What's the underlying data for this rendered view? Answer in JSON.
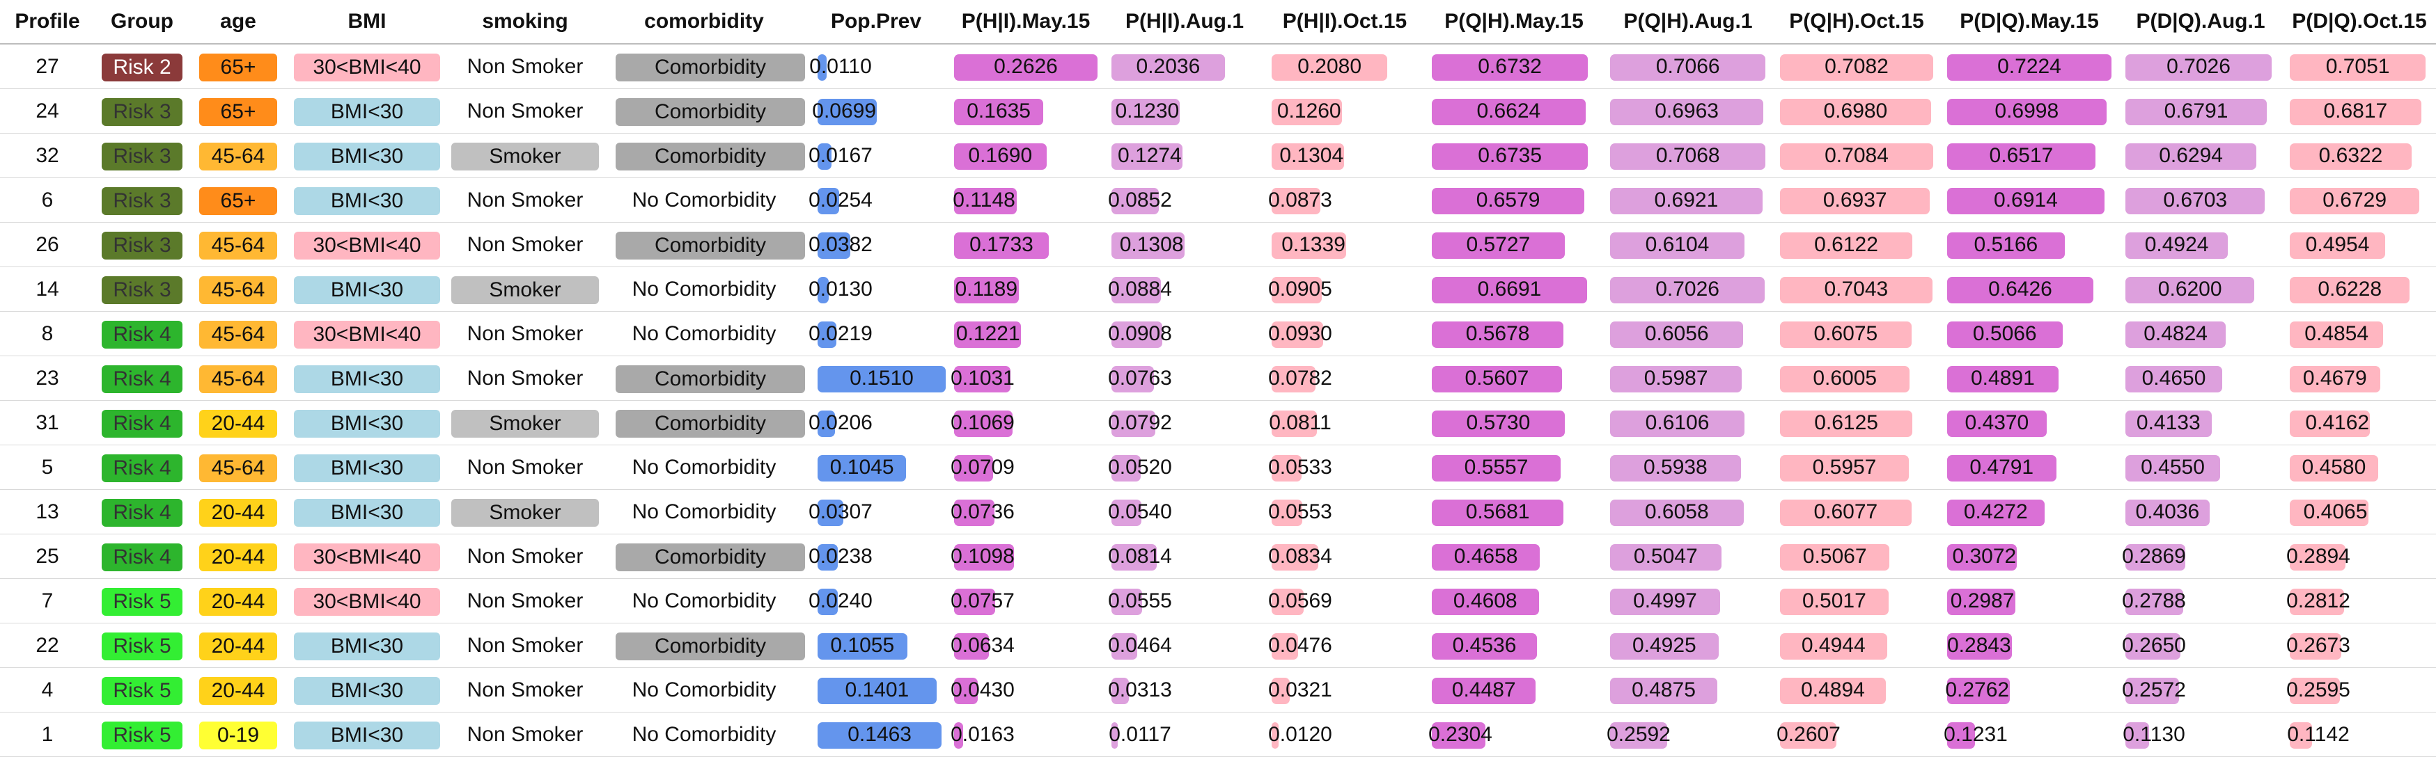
{
  "columns": [
    "Profile",
    "Group",
    "age",
    "BMI",
    "smoking",
    "comorbidity",
    "Pop.Prev",
    "P(H|I).May.15",
    "P(H|I).Aug.1",
    "P(H|I).Oct.15",
    "P(Q|H).May.15",
    "P(Q|H).Aug.1",
    "P(Q|H).Oct.15",
    "P(D|Q).May.15",
    "P(D|Q).Aug.1",
    "P(D|Q).Oct.15"
  ],
  "colors": {
    "groups": {
      "Risk 2": "#8b3a3a",
      "Risk 3": "#5b7a2a",
      "Risk 4": "#2db52d",
      "Risk 5": "#33ee33"
    },
    "ages": {
      "65+": "#ff8c1a",
      "45-64": "#ffb833",
      "20-44": "#ffd21a",
      "0-19": "#ffff33"
    },
    "bmi": {
      "30<BMI<40": "#ffb6c1",
      "BMI<30": "#add8e6"
    },
    "smoker_fill": "#c0c0c0",
    "comorbidity_fill": "#a9a9a9",
    "pop_prev_bar": "#6495ed",
    "may15_bar": "#da70d6",
    "aug1_bar": "#dda0dd",
    "oct15_bar": "#ffb6c1"
  },
  "rows": [
    {
      "profile": "27",
      "group": "Risk 2",
      "age": "65+",
      "bmi": "30<BMI<40",
      "smoking": "Non Smoker",
      "comorbidity": "Comorbidity",
      "pop_prev": 0.011,
      "h_may": 0.2626,
      "h_aug": 0.2036,
      "h_oct": 0.208,
      "q_may": 0.6732,
      "q_aug": 0.7066,
      "q_oct": 0.7082,
      "d_may": 0.7224,
      "d_aug": 0.7026,
      "d_oct": 0.7051
    },
    {
      "profile": "24",
      "group": "Risk 3",
      "age": "65+",
      "bmi": "BMI<30",
      "smoking": "Non Smoker",
      "comorbidity": "Comorbidity",
      "pop_prev": 0.0699,
      "h_may": 0.1635,
      "h_aug": 0.123,
      "h_oct": 0.126,
      "q_may": 0.6624,
      "q_aug": 0.6963,
      "q_oct": 0.698,
      "d_may": 0.6998,
      "d_aug": 0.6791,
      "d_oct": 0.6817
    },
    {
      "profile": "32",
      "group": "Risk 3",
      "age": "45-64",
      "bmi": "BMI<30",
      "smoking": "Smoker",
      "comorbidity": "Comorbidity",
      "pop_prev": 0.0167,
      "h_may": 0.169,
      "h_aug": 0.1274,
      "h_oct": 0.1304,
      "q_may": 0.6735,
      "q_aug": 0.7068,
      "q_oct": 0.7084,
      "d_may": 0.6517,
      "d_aug": 0.6294,
      "d_oct": 0.6322
    },
    {
      "profile": "6",
      "group": "Risk 3",
      "age": "65+",
      "bmi": "BMI<30",
      "smoking": "Non Smoker",
      "comorbidity": "No Comorbidity",
      "pop_prev": 0.0254,
      "h_may": 0.1148,
      "h_aug": 0.0852,
      "h_oct": 0.0873,
      "q_may": 0.6579,
      "q_aug": 0.6921,
      "q_oct": 0.6937,
      "d_may": 0.6914,
      "d_aug": 0.6703,
      "d_oct": 0.6729
    },
    {
      "profile": "26",
      "group": "Risk 3",
      "age": "45-64",
      "bmi": "30<BMI<40",
      "smoking": "Non Smoker",
      "comorbidity": "Comorbidity",
      "pop_prev": 0.0382,
      "h_may": 0.1733,
      "h_aug": 0.1308,
      "h_oct": 0.1339,
      "q_may": 0.5727,
      "q_aug": 0.6104,
      "q_oct": 0.6122,
      "d_may": 0.5166,
      "d_aug": 0.4924,
      "d_oct": 0.4954
    },
    {
      "profile": "14",
      "group": "Risk 3",
      "age": "45-64",
      "bmi": "BMI<30",
      "smoking": "Smoker",
      "comorbidity": "No Comorbidity",
      "pop_prev": 0.013,
      "h_may": 0.1189,
      "h_aug": 0.0884,
      "h_oct": 0.0905,
      "q_may": 0.6691,
      "q_aug": 0.7026,
      "q_oct": 0.7043,
      "d_may": 0.6426,
      "d_aug": 0.62,
      "d_oct": 0.6228
    },
    {
      "profile": "8",
      "group": "Risk 4",
      "age": "45-64",
      "bmi": "30<BMI<40",
      "smoking": "Non Smoker",
      "comorbidity": "No Comorbidity",
      "pop_prev": 0.0219,
      "h_may": 0.1221,
      "h_aug": 0.0908,
      "h_oct": 0.093,
      "q_may": 0.5678,
      "q_aug": 0.6056,
      "q_oct": 0.6075,
      "d_may": 0.5066,
      "d_aug": 0.4824,
      "d_oct": 0.4854
    },
    {
      "profile": "23",
      "group": "Risk 4",
      "age": "45-64",
      "bmi": "BMI<30",
      "smoking": "Non Smoker",
      "comorbidity": "Comorbidity",
      "pop_prev": 0.151,
      "h_may": 0.1031,
      "h_aug": 0.0763,
      "h_oct": 0.0782,
      "q_may": 0.5607,
      "q_aug": 0.5987,
      "q_oct": 0.6005,
      "d_may": 0.4891,
      "d_aug": 0.465,
      "d_oct": 0.4679
    },
    {
      "profile": "31",
      "group": "Risk 4",
      "age": "20-44",
      "bmi": "BMI<30",
      "smoking": "Smoker",
      "comorbidity": "Comorbidity",
      "pop_prev": 0.0206,
      "h_may": 0.1069,
      "h_aug": 0.0792,
      "h_oct": 0.0811,
      "q_may": 0.573,
      "q_aug": 0.6106,
      "q_oct": 0.6125,
      "d_may": 0.437,
      "d_aug": 0.4133,
      "d_oct": 0.4162
    },
    {
      "profile": "5",
      "group": "Risk 4",
      "age": "45-64",
      "bmi": "BMI<30",
      "smoking": "Non Smoker",
      "comorbidity": "No Comorbidity",
      "pop_prev": 0.1045,
      "h_may": 0.0709,
      "h_aug": 0.052,
      "h_oct": 0.0533,
      "q_may": 0.5557,
      "q_aug": 0.5938,
      "q_oct": 0.5957,
      "d_may": 0.4791,
      "d_aug": 0.455,
      "d_oct": 0.458
    },
    {
      "profile": "13",
      "group": "Risk 4",
      "age": "20-44",
      "bmi": "BMI<30",
      "smoking": "Smoker",
      "comorbidity": "No Comorbidity",
      "pop_prev": 0.0307,
      "h_may": 0.0736,
      "h_aug": 0.054,
      "h_oct": 0.0553,
      "q_may": 0.5681,
      "q_aug": 0.6058,
      "q_oct": 0.6077,
      "d_may": 0.4272,
      "d_aug": 0.4036,
      "d_oct": 0.4065
    },
    {
      "profile": "25",
      "group": "Risk 4",
      "age": "20-44",
      "bmi": "30<BMI<40",
      "smoking": "Non Smoker",
      "comorbidity": "Comorbidity",
      "pop_prev": 0.0238,
      "h_may": 0.1098,
      "h_aug": 0.0814,
      "h_oct": 0.0834,
      "q_may": 0.4658,
      "q_aug": 0.5047,
      "q_oct": 0.5067,
      "d_may": 0.3072,
      "d_aug": 0.2869,
      "d_oct": 0.2894
    },
    {
      "profile": "7",
      "group": "Risk 5",
      "age": "20-44",
      "bmi": "30<BMI<40",
      "smoking": "Non Smoker",
      "comorbidity": "No Comorbidity",
      "pop_prev": 0.024,
      "h_may": 0.0757,
      "h_aug": 0.0555,
      "h_oct": 0.0569,
      "q_may": 0.4608,
      "q_aug": 0.4997,
      "q_oct": 0.5017,
      "d_may": 0.2987,
      "d_aug": 0.2788,
      "d_oct": 0.2812
    },
    {
      "profile": "22",
      "group": "Risk 5",
      "age": "20-44",
      "bmi": "BMI<30",
      "smoking": "Non Smoker",
      "comorbidity": "Comorbidity",
      "pop_prev": 0.1055,
      "h_may": 0.0634,
      "h_aug": 0.0464,
      "h_oct": 0.0476,
      "q_may": 0.4536,
      "q_aug": 0.4925,
      "q_oct": 0.4944,
      "d_may": 0.2843,
      "d_aug": 0.265,
      "d_oct": 0.2673
    },
    {
      "profile": "4",
      "group": "Risk 5",
      "age": "20-44",
      "bmi": "BMI<30",
      "smoking": "Non Smoker",
      "comorbidity": "No Comorbidity",
      "pop_prev": 0.1401,
      "h_may": 0.043,
      "h_aug": 0.0313,
      "h_oct": 0.0321,
      "q_may": 0.4487,
      "q_aug": 0.4875,
      "q_oct": 0.4894,
      "d_may": 0.2762,
      "d_aug": 0.2572,
      "d_oct": 0.2595
    },
    {
      "profile": "1",
      "group": "Risk 5",
      "age": "0-19",
      "bmi": "BMI<30",
      "smoking": "Non Smoker",
      "comorbidity": "No Comorbidity",
      "pop_prev": 0.1463,
      "h_may": 0.0163,
      "h_aug": 0.0117,
      "h_oct": 0.012,
      "q_may": 0.2304,
      "q_aug": 0.2592,
      "q_oct": 0.2607,
      "d_may": 0.1231,
      "d_aug": 0.113,
      "d_oct": 0.1142
    }
  ]
}
